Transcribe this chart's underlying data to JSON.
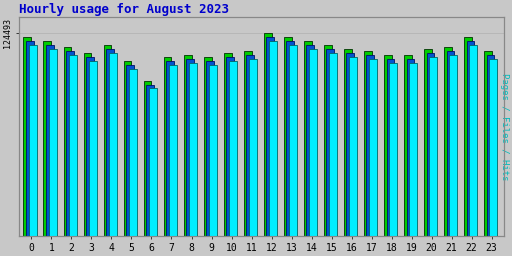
{
  "title": "Hourly usage for August 2023",
  "ylabel_right": "Pages / Files / Hits",
  "hours": [
    0,
    1,
    2,
    3,
    4,
    5,
    6,
    7,
    8,
    9,
    10,
    11,
    12,
    13,
    14,
    15,
    16,
    17,
    18,
    19,
    20,
    21,
    22,
    23
  ],
  "pages": [
    100,
    98,
    95,
    92,
    96,
    88,
    78,
    90,
    91,
    90,
    92,
    93,
    102,
    100,
    98,
    96,
    94,
    93,
    91,
    91,
    94,
    95,
    100,
    93
  ],
  "files": [
    98,
    96,
    93,
    90,
    94,
    86,
    76,
    88,
    89,
    88,
    90,
    91,
    100,
    98,
    96,
    94,
    92,
    91,
    89,
    89,
    92,
    93,
    98,
    91
  ],
  "hits": [
    96,
    94,
    91,
    88,
    92,
    84,
    74,
    86,
    87,
    86,
    88,
    89,
    98,
    96,
    94,
    92,
    90,
    89,
    87,
    87,
    90,
    91,
    96,
    89
  ],
  "bar_color_pages": "#00ee00",
  "bar_color_files": "#0000dd",
  "bar_color_hits": "#00ccff",
  "bar_color_front": "#00ffff",
  "bar_edge_color": "#004400",
  "background_color": "#c8c8c8",
  "plot_bg_color": "#c8c8c8",
  "title_color": "#0000cc",
  "ylabel_color": "#00bbbb",
  "ylim_min": 0,
  "ylim_max": 110,
  "ytick_label": "124493",
  "title_fontsize": 9,
  "axis_fontsize": 7
}
